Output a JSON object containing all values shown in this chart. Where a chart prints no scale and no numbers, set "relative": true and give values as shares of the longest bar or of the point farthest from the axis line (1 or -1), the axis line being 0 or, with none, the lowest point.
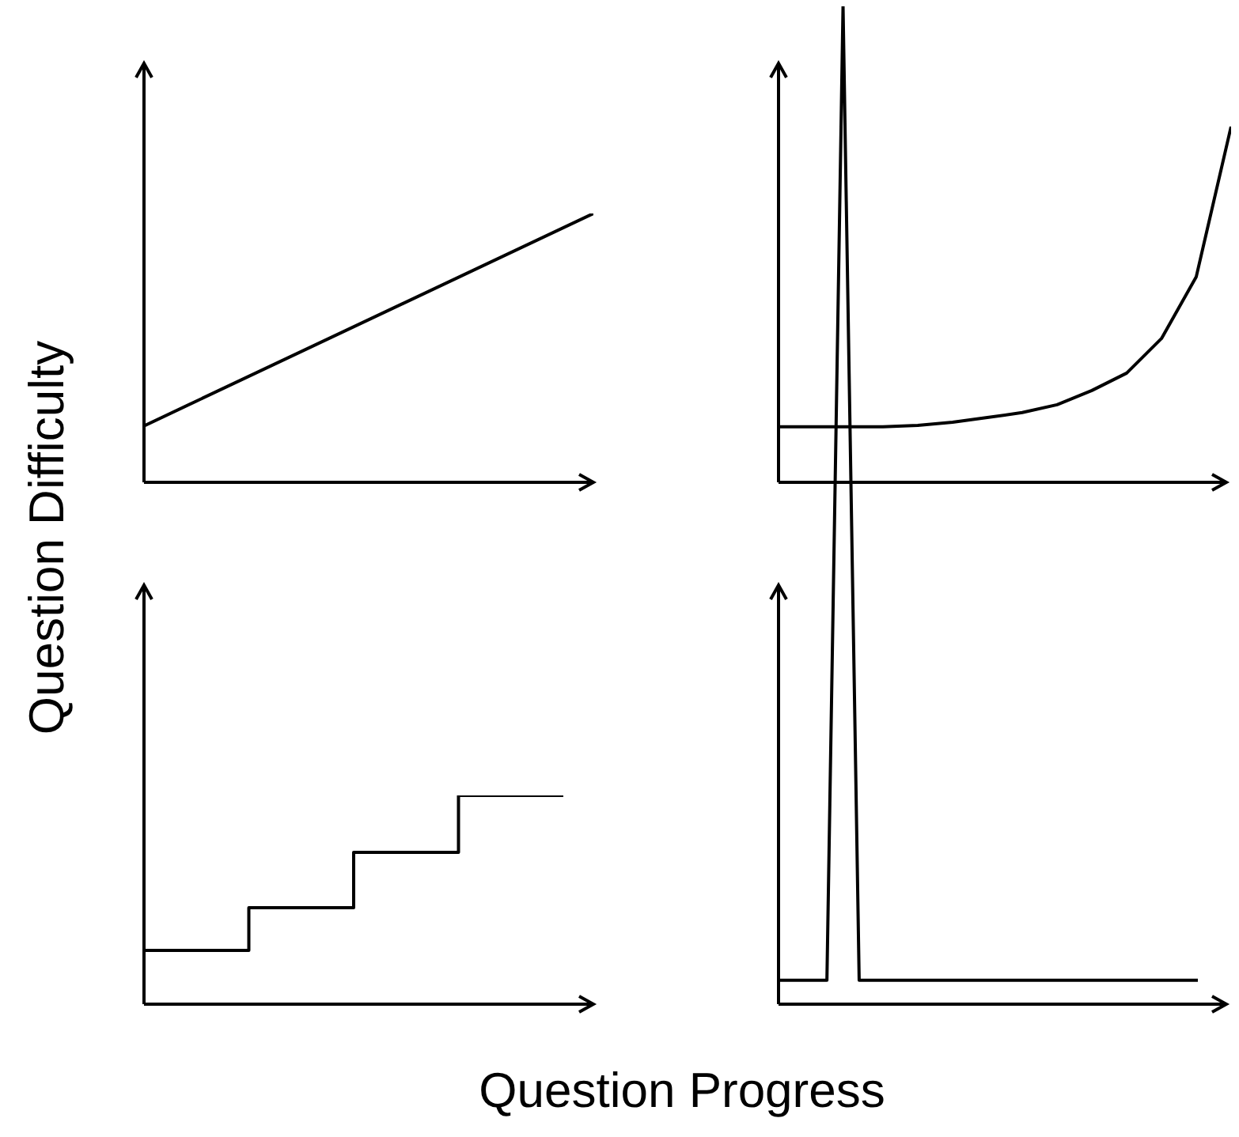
{
  "chart_data": [
    {
      "type": "line",
      "ylabel": "Question Difficulty",
      "categories": [
        null,
        null
      ],
      "values": [
        0.21,
        1
      ],
      "color": "#000000",
      "relative": true
    },
    {
      "type": "line",
      "categories": [
        null,
        null,
        null,
        null,
        null,
        null,
        null,
        null,
        null,
        null,
        null,
        null,
        null,
        null
      ],
      "values": [
        0.156,
        0.156,
        0.156,
        0.156,
        0.16,
        0.169,
        0.182,
        0.196,
        0.218,
        0.258,
        0.307,
        0.404,
        0.578,
        1
      ],
      "color": "#000000",
      "relative": true
    },
    {
      "type": "step",
      "categories": [
        null,
        null,
        null,
        null,
        null
      ],
      "values": [
        0.258,
        0.462,
        0.727,
        1,
        1
      ],
      "color": "#000000",
      "relative": true
    },
    {
      "type": "line",
      "xlabel": "Question Progress",
      "categories": [
        null,
        null,
        null,
        null,
        null,
        null,
        null,
        null,
        null,
        null,
        null,
        null,
        null,
        null,
        null,
        null,
        null,
        null,
        null,
        null,
        null,
        null,
        null,
        null,
        null,
        null,
        null
      ],
      "values": [
        0.024,
        0.024,
        0.024,
        0.024,
        1,
        0.024,
        0.024,
        0.024,
        0.024,
        0.024,
        0.024,
        0.024,
        0.024,
        0.024,
        0.024,
        0.024,
        0.024,
        0.024,
        0.024,
        0.024,
        0.024,
        0.024,
        0.024,
        0.024,
        0.024,
        0.024,
        0.024
      ],
      "color": "#000000",
      "relative": true
    }
  ]
}
